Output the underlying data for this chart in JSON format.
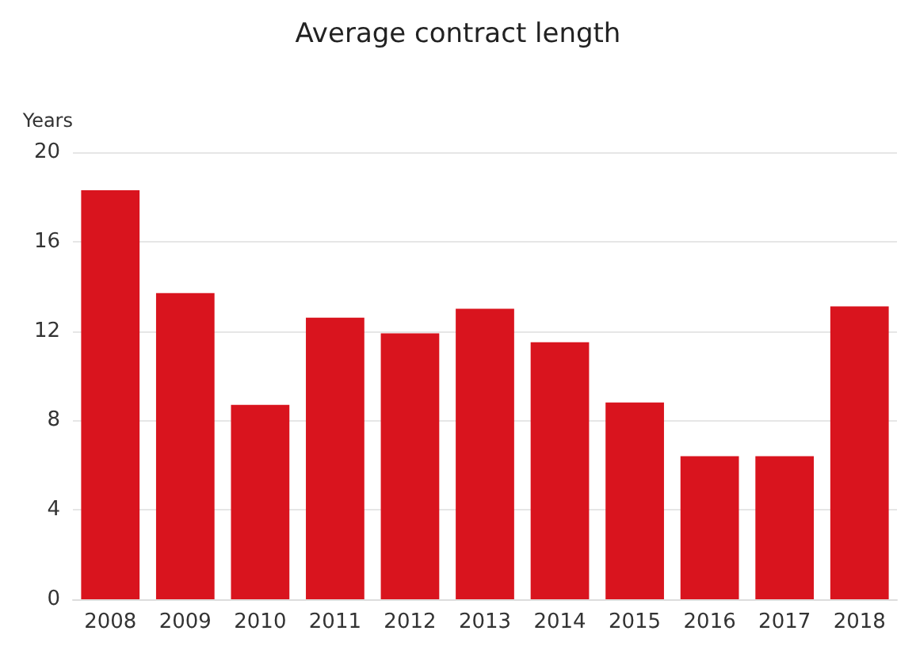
{
  "chart_data": {
    "type": "bar",
    "title": "Average contract length",
    "ylabel": "Years",
    "categories": [
      "2008",
      "2009",
      "2010",
      "2011",
      "2012",
      "2013",
      "2014",
      "2015",
      "2016",
      "2017",
      "2018"
    ],
    "values": [
      18.3,
      13.7,
      8.7,
      12.6,
      11.9,
      13.0,
      11.5,
      8.8,
      6.4,
      6.4,
      13.1
    ],
    "color": "#d9141e",
    "ylim": [
      0,
      20
    ],
    "yticks": [
      0,
      4,
      8,
      12,
      16,
      20
    ],
    "grid": "y"
  }
}
